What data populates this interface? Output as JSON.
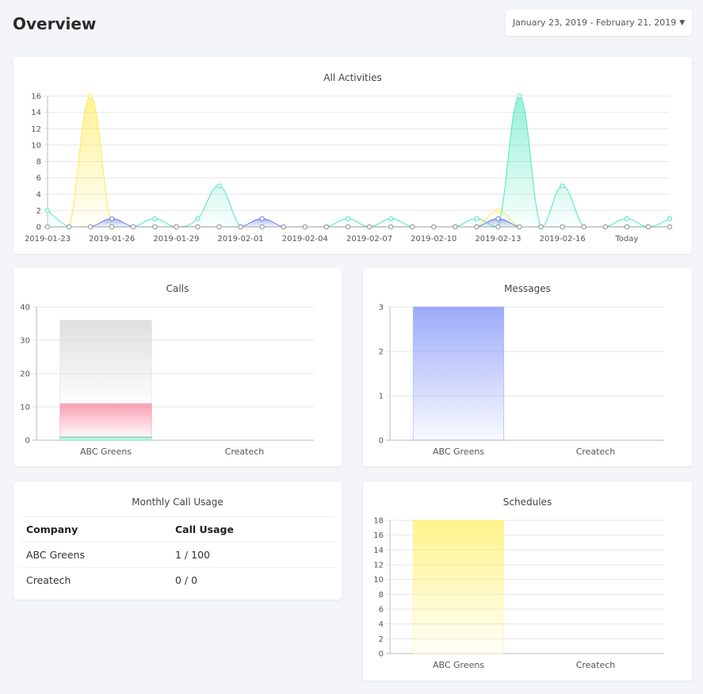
{
  "header": {
    "title": "Overview",
    "date_range": "January 23, 2019 - February 21, 2019"
  },
  "activities_card": {
    "title": "All Activities"
  },
  "calls_card": {
    "title": "Calls"
  },
  "messages_card": {
    "title": "Messages"
  },
  "usage_card": {
    "title": "Monthly Call Usage",
    "columns": [
      "Company",
      "Call Usage"
    ],
    "rows": [
      {
        "company": "ABC Greens",
        "usage": "1 / 100"
      },
      {
        "company": "Createch",
        "usage": "0 / 0"
      }
    ]
  },
  "schedules_card": {
    "title": "Schedules"
  },
  "chart_data": [
    {
      "type": "area",
      "title": "All Activities",
      "x_tick_labels": [
        "2019-01-23",
        "2019-01-26",
        "2019-01-29",
        "2019-02-01",
        "2019-02-04",
        "2019-02-07",
        "2019-02-10",
        "2019-02-13",
        "2019-02-16",
        "Today"
      ],
      "ylim": [
        0,
        16
      ],
      "y_ticks": [
        0,
        2,
        4,
        6,
        8,
        10,
        12,
        14,
        16
      ],
      "grid": true,
      "series": [
        {
          "color": "#ffe94d",
          "values": [
            0,
            0,
            16,
            0,
            0,
            0,
            0,
            0,
            0,
            0,
            0,
            0,
            0,
            0,
            0,
            0,
            0,
            0,
            0,
            0,
            0,
            2,
            0,
            0,
            0,
            0,
            0,
            0,
            0,
            0
          ]
        },
        {
          "color": "#4de8bf",
          "values": [
            2,
            0,
            0,
            0,
            0,
            1,
            0,
            1,
            5,
            0,
            0,
            0,
            0,
            0,
            1,
            0,
            1,
            0,
            0,
            0,
            1,
            0,
            16,
            0,
            5,
            0,
            0,
            1,
            0,
            1
          ]
        },
        {
          "color": "#6b7ef0",
          "values": [
            0,
            0,
            0,
            1,
            0,
            0,
            0,
            0,
            0,
            0,
            1,
            0,
            0,
            0,
            0,
            0,
            0,
            0,
            0,
            0,
            0,
            1,
            0,
            0,
            0,
            0,
            0,
            0,
            0,
            0
          ]
        },
        {
          "color": "#999999",
          "values": [
            0,
            0,
            0,
            0,
            0,
            0,
            0,
            0,
            0,
            0,
            0,
            0,
            0,
            0,
            0,
            0,
            0,
            0,
            0,
            0,
            0,
            0,
            0,
            0,
            0,
            0,
            0,
            0,
            0,
            0
          ]
        }
      ]
    },
    {
      "type": "bar",
      "title": "Calls",
      "categories": [
        "ABC Greens",
        "Createch"
      ],
      "ylim": [
        0,
        40
      ],
      "y_ticks": [
        0,
        10,
        20,
        30,
        40
      ],
      "series": [
        {
          "color": "#4de8bf",
          "values": [
            1,
            0
          ]
        },
        {
          "color": "#f98ea6",
          "values": [
            10,
            0
          ]
        },
        {
          "color": "#d9d9db",
          "values": [
            25,
            0
          ]
        }
      ]
    },
    {
      "type": "bar",
      "title": "Messages",
      "categories": [
        "ABC Greens",
        "Createch"
      ],
      "ylim": [
        0,
        3
      ],
      "y_ticks": [
        0,
        1,
        2,
        3
      ],
      "series": [
        {
          "color": "#8a9cf7",
          "values": [
            3,
            0
          ]
        }
      ]
    },
    {
      "type": "bar",
      "title": "Schedules",
      "categories": [
        "ABC Greens",
        "Createch"
      ],
      "ylim": [
        0,
        18
      ],
      "y_ticks": [
        0,
        2,
        4,
        6,
        8,
        10,
        12,
        14,
        16,
        18
      ],
      "series": [
        {
          "color": "#fff176",
          "values": [
            18,
            0
          ]
        }
      ]
    }
  ]
}
